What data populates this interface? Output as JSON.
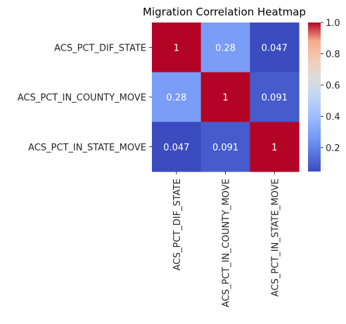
{
  "chart_data": {
    "type": "heatmap",
    "title": "Migration Correlation Heatmap",
    "rows": [
      "ACS_PCT_DIF_STATE",
      "ACS_PCT_IN_COUNTY_MOVE",
      "ACS_PCT_IN_STATE_MOVE"
    ],
    "columns": [
      "ACS_PCT_DIF_STATE",
      "ACS_PCT_IN_COUNTY_MOVE",
      "ACS_PCT_IN_STATE_MOVE"
    ],
    "values": [
      [
        1,
        0.28,
        0.047
      ],
      [
        0.28,
        1,
        0.091
      ],
      [
        0.047,
        0.091,
        1
      ]
    ],
    "cell_labels": [
      [
        "1",
        "0.28",
        "0.047"
      ],
      [
        "0.28",
        "1",
        "0.091"
      ],
      [
        "0.047",
        "0.091",
        "1"
      ]
    ],
    "colormap": "coolwarm",
    "colorbar": {
      "range": [
        0.047,
        1.0
      ],
      "ticks": [
        0.2,
        0.4,
        0.6,
        0.8,
        1.0
      ],
      "tick_labels": [
        "0.2",
        "0.4",
        "0.6",
        "0.8",
        "1.0"
      ]
    }
  }
}
